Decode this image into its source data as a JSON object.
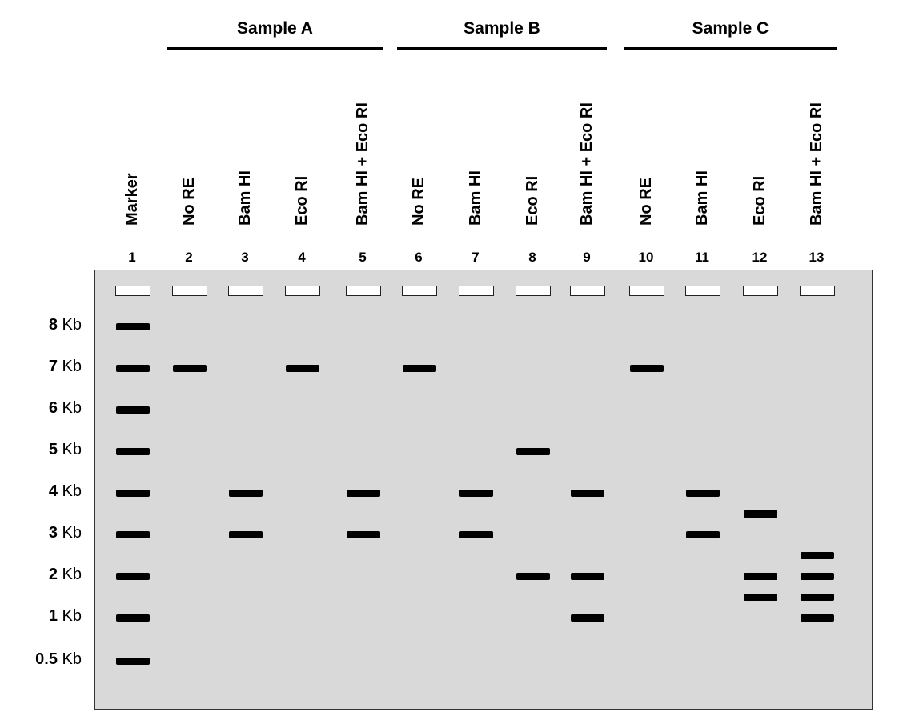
{
  "groups": [
    {
      "title": "Sample A",
      "lanes": [
        2,
        5
      ]
    },
    {
      "title": "Sample B",
      "lanes": [
        6,
        9
      ]
    },
    {
      "title": "Sample C",
      "lanes": [
        10,
        13
      ]
    }
  ],
  "lanes": [
    {
      "number": "1",
      "label": "Marker"
    },
    {
      "number": "2",
      "label": "No RE"
    },
    {
      "number": "3",
      "label": "Bam HI"
    },
    {
      "number": "4",
      "label": "Eco RI"
    },
    {
      "number": "5",
      "label": "Bam HI + Eco RI"
    },
    {
      "number": "6",
      "label": "No RE"
    },
    {
      "number": "7",
      "label": "Bam HI"
    },
    {
      "number": "8",
      "label": "Eco RI"
    },
    {
      "number": "9",
      "label": "Bam HI + Eco RI"
    },
    {
      "number": "10",
      "label": "No RE"
    },
    {
      "number": "11",
      "label": "Bam HI"
    },
    {
      "number": "12",
      "label": "Eco RI"
    },
    {
      "number": "13",
      "label": "Bam HI + Eco RI"
    }
  ],
  "size_markers": [
    {
      "value": "8",
      "unit": "Kb"
    },
    {
      "value": "7",
      "unit": "Kb"
    },
    {
      "value": "6",
      "unit": "Kb"
    },
    {
      "value": "5",
      "unit": "Kb"
    },
    {
      "value": "4",
      "unit": "Kb"
    },
    {
      "value": "3",
      "unit": "Kb"
    },
    {
      "value": "2",
      "unit": "Kb"
    },
    {
      "value": "1",
      "unit": "Kb"
    },
    {
      "value": "0.5",
      "unit": "Kb"
    }
  ],
  "bands_kb": {
    "1": [
      8,
      7,
      6,
      5,
      4,
      3,
      2,
      1,
      0.5
    ],
    "2": [
      7
    ],
    "3": [
      4,
      3
    ],
    "4": [
      7
    ],
    "5": [
      4,
      3
    ],
    "6": [
      7
    ],
    "7": [
      4,
      3
    ],
    "8": [
      5,
      2
    ],
    "9": [
      4,
      2,
      1
    ],
    "10": [
      7
    ],
    "11": [
      4,
      3
    ],
    "12": [
      3.5,
      2,
      1.5
    ],
    "13": [
      2.5,
      2,
      1.5,
      1
    ]
  },
  "colors": {
    "gel": "#d9d9d9",
    "band": "#000000",
    "well": "#ffffff"
  }
}
